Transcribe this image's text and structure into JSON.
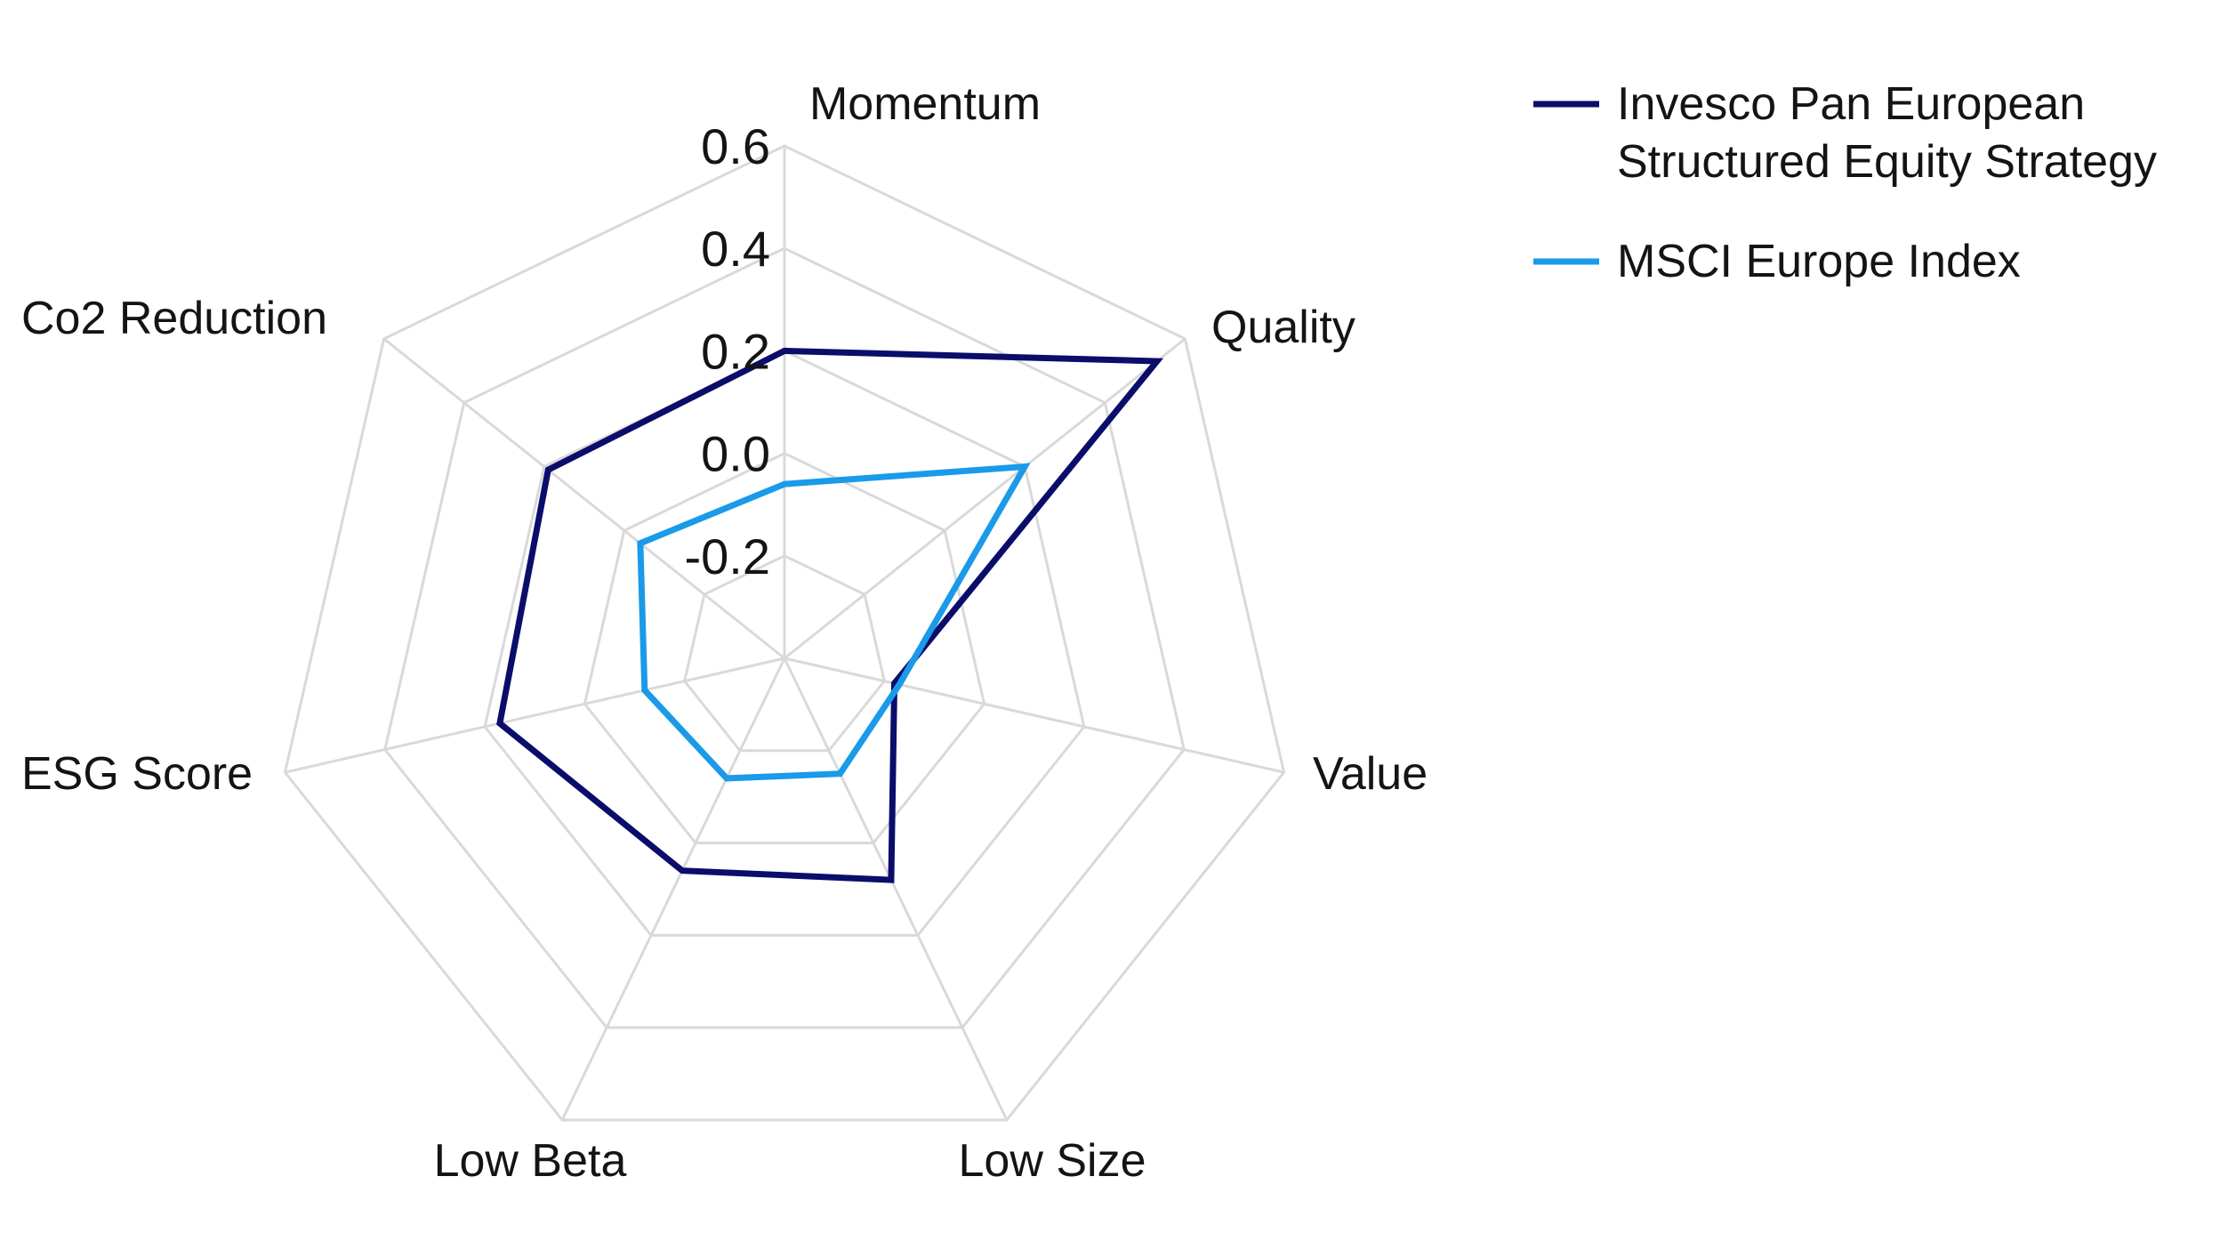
{
  "chart_data": {
    "type": "radar",
    "axes": [
      "Momentum",
      "Quality",
      "Value",
      "Low Size",
      "Low Beta",
      "ESG Score",
      "Co2 Reduction"
    ],
    "rlim": [
      -0.4,
      0.6
    ],
    "ticks": [
      "-0.2",
      "0.0",
      "0.2",
      "0.4",
      "0.6"
    ],
    "tick_values": [
      -0.2,
      0.0,
      0.2,
      0.4,
      0.6
    ],
    "grid": true,
    "legend_position": "top-right",
    "series": [
      {
        "name": "Invesco Pan European Structured Equity Strategy",
        "legend_lines": [
          "Invesco Pan European",
          "Structured Equity Strategy"
        ],
        "color": "#0b0d6b",
        "values": [
          0.2,
          0.53,
          -0.18,
          0.08,
          0.06,
          0.17,
          0.19
        ]
      },
      {
        "name": "MSCI Europe Index",
        "legend_lines": [
          "MSCI Europe Index"
        ],
        "color": "#1a9ae8",
        "values": [
          -0.06,
          0.2,
          -0.17,
          -0.15,
          -0.14,
          -0.12,
          -0.04
        ]
      }
    ]
  }
}
